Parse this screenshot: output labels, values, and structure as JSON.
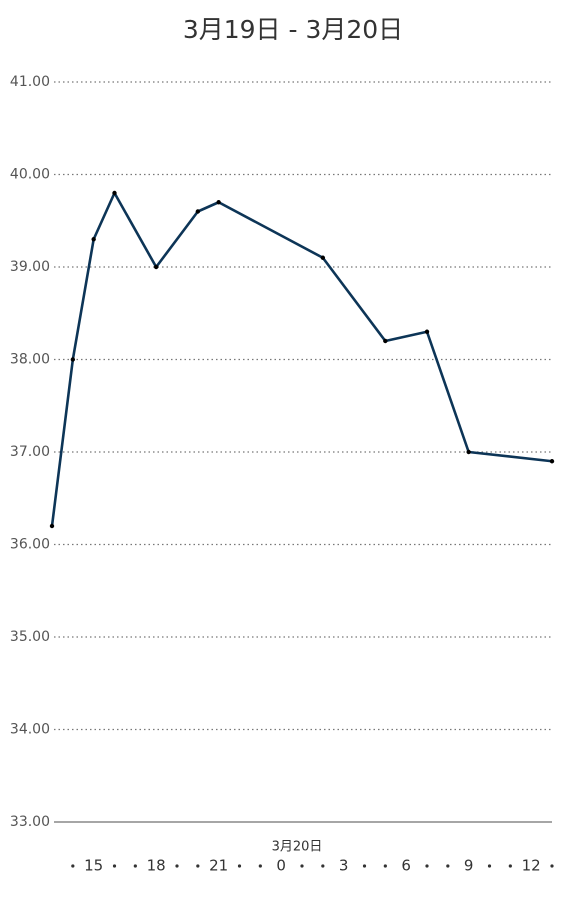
{
  "chart_data": {
    "type": "line",
    "title": "3月19日 - 3月20日",
    "x_annotation": "3月20日",
    "x": [
      13,
      14,
      15,
      16,
      18,
      20,
      21,
      26,
      29,
      31,
      33,
      37
    ],
    "series": [
      {
        "color": "#0d3557",
        "values": [
          36.2,
          38.0,
          39.3,
          39.8,
          39.0,
          39.6,
          39.7,
          39.1,
          38.2,
          38.3,
          37.0,
          36.9
        ]
      }
    ],
    "xlim": [
      13,
      37
    ],
    "xticks": [
      15,
      18,
      21,
      {
        "value": 24,
        "label": "0"
      },
      {
        "value": 27,
        "label": "3"
      },
      {
        "value": 30,
        "label": "6"
      },
      {
        "value": 33,
        "label": "9"
      },
      {
        "value": 36,
        "label": "12"
      }
    ],
    "ylim": [
      33,
      41
    ],
    "yticks": [
      {
        "value": 33,
        "label": "33.00"
      },
      {
        "value": 34,
        "label": "34.00"
      },
      {
        "value": 35,
        "label": "35.00"
      },
      {
        "value": 36,
        "label": "36.00"
      },
      {
        "value": 37,
        "label": "37.00"
      },
      {
        "value": 38,
        "label": "38.00"
      },
      {
        "value": 39,
        "label": "39.00"
      },
      {
        "value": 40,
        "label": "40.00"
      },
      {
        "value": 41,
        "label": "41.00"
      }
    ],
    "grid": true
  }
}
